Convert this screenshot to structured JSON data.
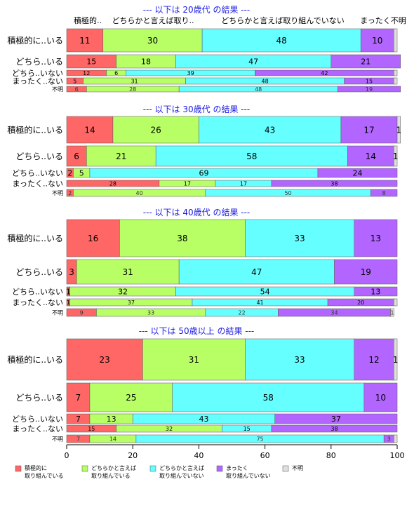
{
  "chart_data": {
    "type": "bar",
    "orientation": "horizontal",
    "stacked": true,
    "xlim": [
      0,
      100
    ],
    "x_ticks": [
      "0",
      "20",
      "40",
      "60",
      "80",
      "100"
    ],
    "colors": [
      "#ff6666",
      "#b8ff66",
      "#66ffff",
      "#b266ff",
      "#e0e0e0"
    ],
    "column_headers": [
      "積極的..",
      "どちらかと言えば取り..",
      "どちらかと言えば取り組んでいない",
      "まったく不明"
    ],
    "legend": [
      {
        "line1": "積極的に",
        "line2": "取り組んでいる",
        "color": "#ff6666"
      },
      {
        "line1": "どちらかと言えば",
        "line2": "取り組んでいる",
        "color": "#b8ff66"
      },
      {
        "line1": "どちらかと言えば",
        "line2": "取り組んでいない",
        "color": "#66ffff"
      },
      {
        "line1": "まったく",
        "line2": "取り組んでいない",
        "color": "#b266ff"
      },
      {
        "line1": "不明",
        "line2": "",
        "color": "#e0e0e0"
      }
    ],
    "panels": [
      {
        "title": "--- 以下は 20歳代 の結果 ---",
        "rows": [
          {
            "label": "積極的に..いる",
            "values": [
              11,
              30,
              48,
              10,
              1
            ],
            "labels": [
              "11",
              "30",
              "48",
              "10",
              ""
            ]
          },
          {
            "label": "どちら..いる",
            "values": [
              15,
              18,
              47,
              21,
              0
            ],
            "labels": [
              "15",
              "18",
              "47",
              "21",
              ""
            ]
          },
          {
            "label": "どちら..いない",
            "values": [
              12,
              6,
              39,
              42,
              1
            ],
            "labels": [
              "12",
              "6",
              "39",
              "42",
              ""
            ]
          },
          {
            "label": "まったく..ない",
            "values": [
              5,
              31,
              48,
              15,
              1
            ],
            "labels": [
              "5",
              "31",
              "48",
              "15",
              ""
            ]
          },
          {
            "label": "不明",
            "values": [
              6,
              28,
              48,
              19,
              0
            ],
            "labels": [
              "6",
              "28",
              "48",
              "19",
              ""
            ]
          }
        ]
      },
      {
        "title": "--- 以下は 30歳代 の結果 ---",
        "rows": [
          {
            "label": "積極的に..いる",
            "values": [
              14,
              26,
              43,
              17,
              1
            ],
            "labels": [
              "14",
              "26",
              "43",
              "17",
              "1"
            ]
          },
          {
            "label": "どちら..いる",
            "values": [
              6,
              21,
              58,
              14,
              1
            ],
            "labels": [
              "6",
              "21",
              "58",
              "14",
              "1"
            ]
          },
          {
            "label": "どちら..いない",
            "values": [
              2,
              5,
              69,
              24,
              0
            ],
            "labels": [
              "2",
              "5",
              "69",
              "24",
              ""
            ]
          },
          {
            "label": "まったく..ない",
            "values": [
              28,
              17,
              17,
              38,
              0
            ],
            "labels": [
              "28",
              "17",
              "17",
              "38",
              ""
            ]
          },
          {
            "label": "不明",
            "values": [
              2,
              40,
              50,
              8,
              0
            ],
            "labels": [
              "2",
              "40",
              "50",
              "8",
              ""
            ]
          }
        ]
      },
      {
        "title": "--- 以下は 40歳代 の結果 ---",
        "rows": [
          {
            "label": "積極的に..いる",
            "values": [
              16,
              38,
              33,
              13,
              0
            ],
            "labels": [
              "16",
              "38",
              "33",
              "13",
              ""
            ]
          },
          {
            "label": "どちら..いる",
            "values": [
              3,
              31,
              47,
              19,
              0
            ],
            "labels": [
              "3",
              "31",
              "47",
              "19",
              ""
            ]
          },
          {
            "label": "どちら..いない",
            "values": [
              1,
              32,
              54,
              13,
              0
            ],
            "labels": [
              "1",
              "32",
              "54",
              "13",
              ""
            ]
          },
          {
            "label": "まったく..ない",
            "values": [
              1,
              37,
              41,
              20,
              1
            ],
            "labels": [
              "1",
              "37",
              "41",
              "20",
              ""
            ]
          },
          {
            "label": "不明",
            "values": [
              9,
              33,
              22,
              34,
              1
            ],
            "labels": [
              "9",
              "33",
              "22",
              "34",
              "1"
            ]
          }
        ]
      },
      {
        "title": "--- 以下は 50歳以上 の結果 ---",
        "rows": [
          {
            "label": "積極的に..いる",
            "values": [
              23,
              31,
              33,
              12,
              1
            ],
            "labels": [
              "23",
              "31",
              "33",
              "12",
              "1"
            ]
          },
          {
            "label": "どちら..いる",
            "values": [
              7,
              25,
              58,
              10,
              0
            ],
            "labels": [
              "7",
              "25",
              "58",
              "10",
              ""
            ]
          },
          {
            "label": "どちら..いない",
            "values": [
              7,
              13,
              43,
              37,
              0
            ],
            "labels": [
              "7",
              "13",
              "43",
              "37",
              ""
            ]
          },
          {
            "label": "まったく..ない",
            "values": [
              15,
              32,
              15,
              38,
              0
            ],
            "labels": [
              "15",
              "32",
              "15",
              "38",
              ""
            ]
          },
          {
            "label": "不明",
            "values": [
              7,
              14,
              75,
              3,
              1
            ],
            "labels": [
              "7",
              "14",
              "75",
              "3",
              ""
            ]
          }
        ]
      }
    ]
  }
}
